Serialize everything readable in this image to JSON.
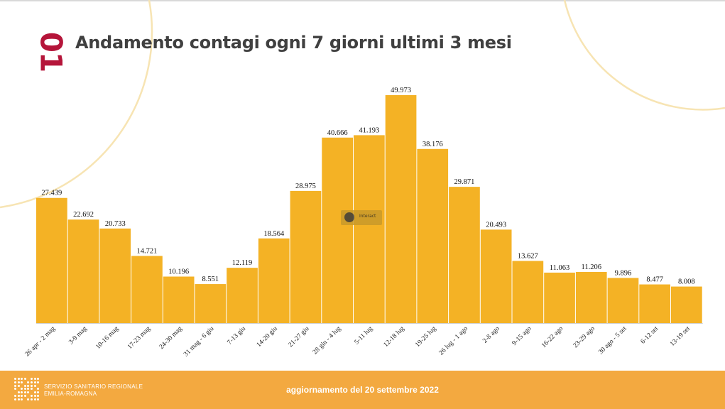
{
  "slide": {
    "number": "01",
    "title": "Andamento contagi ogni 7 giorni ultimi 3 mesi"
  },
  "chart_data": {
    "type": "bar",
    "categories": [
      "26 apr - 2 mag",
      "3-9 mag",
      "10-16 mag",
      "17-23 mag",
      "24-30 mag",
      "31 mag - 6 giu",
      "7-13 giu",
      "14-20 giu",
      "21-27 giu",
      "28 giu - 4 lug",
      "5-11 lug",
      "12-18 lug",
      "19-25 lug",
      "26 lug - 1 ago",
      "2-8 ago",
      "9-15 ago",
      "16-22 ago",
      "23-29 ago",
      "30 ago - 5 set",
      "6-12 set",
      "13-19 set"
    ],
    "values": [
      27439,
      22692,
      20733,
      14721,
      10196,
      8551,
      12119,
      18564,
      28975,
      40666,
      41193,
      49973,
      38176,
      29871,
      20493,
      13627,
      11063,
      11206,
      9896,
      8477,
      8008
    ],
    "value_labels": [
      "27.439",
      "22.692",
      "20.733",
      "14.721",
      "10.196",
      "8.551",
      "12.119",
      "18.564",
      "28.975",
      "40.666",
      "41.193",
      "49.973",
      "38.176",
      "29.871",
      "20.493",
      "13.627",
      "11.063",
      "11.206",
      "9.896",
      "8.477",
      "8.008"
    ],
    "ylim": [
      0,
      50000
    ],
    "bar_color": "#f4b225",
    "grid": false,
    "legend": "none",
    "title": "",
    "xlabel": "",
    "ylabel": ""
  },
  "widget": {
    "label": "Interact",
    "icon": "hand-icon"
  },
  "footer": {
    "org_line1": "SERVIZIO SANITARIO REGIONALE",
    "org_line2": "EMILIA-ROMAGNA",
    "update_text": "aggiornamento del 20 settembre 2022",
    "color": "#f3a940"
  }
}
